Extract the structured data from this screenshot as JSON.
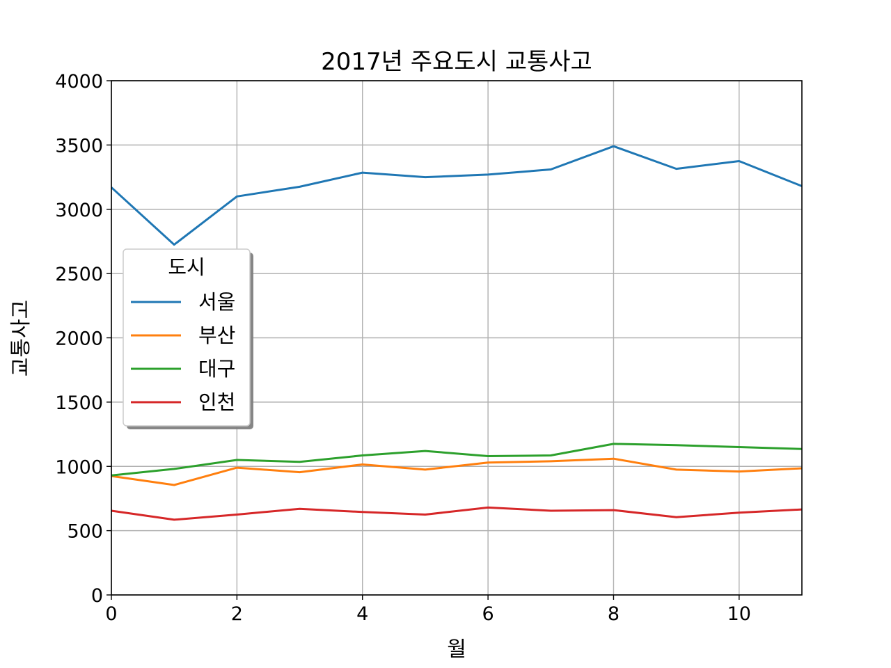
{
  "chart_data": {
    "type": "line",
    "title": "2017년 주요도시 교통사고",
    "xlabel": "월",
    "ylabel": "교통사고",
    "xlim": [
      0,
      11
    ],
    "ylim": [
      0,
      4000
    ],
    "x": [
      0,
      1,
      2,
      3,
      4,
      5,
      6,
      7,
      8,
      9,
      10,
      11
    ],
    "xticks": [
      0,
      2,
      4,
      6,
      8,
      10
    ],
    "yticks": [
      0,
      500,
      1000,
      1500,
      2000,
      2500,
      3000,
      3500,
      4000
    ],
    "grid": true,
    "legend": {
      "title": "도시",
      "position": "center-left"
    },
    "series": [
      {
        "name": "서울",
        "color": "#1f77b4",
        "values": [
          3170,
          2725,
          3100,
          3175,
          3285,
          3250,
          3270,
          3310,
          3490,
          3315,
          3375,
          3180
        ]
      },
      {
        "name": "부산",
        "color": "#ff7f0e",
        "values": [
          925,
          855,
          990,
          955,
          1015,
          975,
          1030,
          1040,
          1060,
          975,
          960,
          985
        ]
      },
      {
        "name": "대구",
        "color": "#2ca02c",
        "values": [
          930,
          980,
          1050,
          1035,
          1085,
          1120,
          1080,
          1085,
          1175,
          1165,
          1150,
          1135
        ]
      },
      {
        "name": "인천",
        "color": "#d62728",
        "values": [
          655,
          585,
          625,
          670,
          645,
          625,
          680,
          655,
          660,
          605,
          640,
          665
        ]
      }
    ]
  }
}
